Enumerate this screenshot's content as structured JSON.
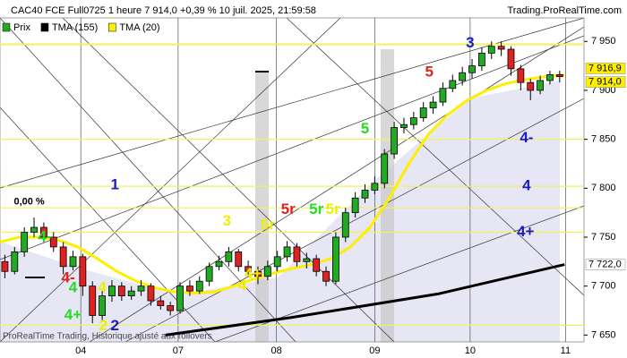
{
  "chart_data": {
    "type": "candlestick",
    "title": "CAC40 FCE Full0725 1 heure 7 914,0 +0,39 % 10 juil. 2025, 21:59:58",
    "source": "Trading.ProRealTime.com",
    "footer": "ProRealTime Trading, Historique ajusté aux rollovers",
    "xlim": [
      0,
      60
    ],
    "xticks": [
      {
        "value": 8.3,
        "label": "04"
      },
      {
        "value": 18.3,
        "label": "07"
      },
      {
        "value": 28.4,
        "label": "08"
      },
      {
        "value": 38.5,
        "label": "09"
      },
      {
        "value": 48.3,
        "label": "10"
      },
      {
        "value": 58.1,
        "label": "11"
      }
    ],
    "ylim": [
      7643,
      7974
    ],
    "yticks": [
      {
        "value": 7650,
        "label": "7 650"
      },
      {
        "value": 7700,
        "label": "7 700"
      },
      {
        "value": 7750,
        "label": "7 750"
      },
      {
        "value": 7800,
        "label": "7 800"
      },
      {
        "value": 7850,
        "label": "7 850"
      },
      {
        "value": 7900,
        "label": "7 900"
      },
      {
        "value": 7950,
        "label": "7 950"
      }
    ],
    "levels": [
      7947,
      7850,
      7802,
      7780,
      7755,
      7660
    ],
    "level_color": "#f2f25a",
    "series": [
      {
        "name": "Prix",
        "type": "candlestick",
        "color": "#22aa22",
        "down_color": "#dd2222",
        "x": [
          0.5,
          1.5,
          2.5,
          3.5,
          4.5,
          5.5,
          6.5,
          7.5,
          8.5,
          9.5,
          10.5,
          11.5,
          12.5,
          13.5,
          14.5,
          15.5,
          16.5,
          17.5,
          18.5,
          19.5,
          20.5,
          21.5,
          22.5,
          23.5,
          24.5,
          25.5,
          26.5,
          27.5,
          28.5,
          29.5,
          30.5,
          31.5,
          32.5,
          33.5,
          34.5,
          35.5,
          36.5,
          37.5,
          38.5,
          39.5,
          40.5,
          41.5,
          42.5,
          43.5,
          44.5,
          45.5,
          46.5,
          47.5,
          48.5,
          49.5,
          50.5,
          51.5,
          52.5,
          53.5,
          54.5,
          55.5,
          56.5,
          57.5
        ],
        "open": [
          7725,
          7715,
          7735,
          7755,
          7760,
          7750,
          7740,
          7720,
          7730,
          7700,
          7670,
          7690,
          7700,
          7690,
          7695,
          7700,
          7685,
          7680,
          7675,
          7700,
          7695,
          7705,
          7720,
          7725,
          7735,
          7720,
          7715,
          7710,
          7720,
          7730,
          7740,
          7725,
          7728,
          7715,
          7705,
          7750,
          7775,
          7790,
          7798,
          7805,
          7835,
          7862,
          7865,
          7872,
          7882,
          7888,
          7902,
          7910,
          7918,
          7925,
          7938,
          7945,
          7942,
          7922,
          7908,
          7900,
          7910,
          7916
        ],
        "high": [
          7732,
          7740,
          7760,
          7770,
          7765,
          7755,
          7745,
          7736,
          7733,
          7705,
          7695,
          7706,
          7704,
          7700,
          7706,
          7703,
          7690,
          7684,
          7704,
          7706,
          7710,
          7724,
          7731,
          7740,
          7738,
          7726,
          7720,
          7726,
          7736,
          7746,
          7744,
          7734,
          7732,
          7720,
          7755,
          7780,
          7796,
          7804,
          7812,
          7840,
          7868,
          7872,
          7878,
          7888,
          7894,
          7908,
          7916,
          7924,
          7932,
          7944,
          7950,
          7950,
          7945,
          7926,
          7912,
          7915,
          7920,
          7920
        ],
        "low": [
          7708,
          7712,
          7730,
          7750,
          7745,
          7735,
          7712,
          7716,
          7690,
          7662,
          7665,
          7684,
          7685,
          7686,
          7690,
          7680,
          7676,
          7670,
          7672,
          7690,
          7692,
          7700,
          7716,
          7720,
          7715,
          7710,
          7702,
          7706,
          7715,
          7725,
          7720,
          7718,
          7710,
          7700,
          7702,
          7745,
          7770,
          7785,
          7794,
          7800,
          7830,
          7856,
          7860,
          7868,
          7876,
          7884,
          7898,
          7905,
          7912,
          7920,
          7932,
          7935,
          7915,
          7900,
          7890,
          7896,
          7906,
          7908
        ],
        "close": [
          7715,
          7735,
          7755,
          7760,
          7750,
          7740,
          7720,
          7730,
          7700,
          7670,
          7690,
          7700,
          7690,
          7695,
          7700,
          7685,
          7680,
          7675,
          7700,
          7695,
          7705,
          7720,
          7725,
          7735,
          7720,
          7715,
          7710,
          7720,
          7730,
          7740,
          7725,
          7728,
          7715,
          7705,
          7750,
          7775,
          7790,
          7798,
          7805,
          7835,
          7862,
          7865,
          7872,
          7882,
          7888,
          7902,
          7910,
          7918,
          7925,
          7938,
          7945,
          7942,
          7922,
          7908,
          7900,
          7910,
          7916,
          7914
        ]
      },
      {
        "name": "TMA (155)",
        "type": "line",
        "color": "#000000",
        "x": [
          17,
          30,
          45,
          58
        ],
        "values": [
          7650,
          7668,
          7692,
          7722
        ]
      },
      {
        "name": "TMA (20)",
        "type": "line",
        "color": "#ffee00",
        "x": [
          0,
          2,
          4,
          6,
          8,
          10,
          12,
          14,
          16,
          18,
          20,
          22,
          24,
          26,
          28,
          30,
          32,
          34,
          36,
          38,
          40,
          42,
          44,
          46,
          48,
          50,
          52,
          54,
          56,
          58
        ],
        "values": [
          7745,
          7750,
          7750,
          7747,
          7740,
          7728,
          7715,
          7705,
          7698,
          7694,
          7693,
          7694,
          7700,
          7707,
          7713,
          7718,
          7722,
          7728,
          7740,
          7760,
          7790,
          7825,
          7855,
          7875,
          7890,
          7900,
          7907,
          7911,
          7914,
          7916
        ]
      }
    ],
    "price_labels": [
      {
        "value": 7916.9,
        "label": "7 916,9",
        "color": "#ffee00"
      },
      {
        "value": 7914.0,
        "label": "7 914,0",
        "color": "#ffee00"
      },
      {
        "value": 7722.0,
        "label": "7 722,0",
        "color": "#ffffff"
      }
    ],
    "annotations": [
      {
        "text": "0,00 %",
        "color": "#000000",
        "x": 3.0,
        "y": 7786
      },
      {
        "text": "1",
        "color": "#1a1acc",
        "x": 11.8,
        "y": 7803
      },
      {
        "text": "2",
        "color": "#1a1acc",
        "x": 11.8,
        "y": 7659
      },
      {
        "text": "2",
        "color": "#eeee00",
        "x": 10.6,
        "y": 7659
      },
      {
        "text": "3",
        "color": "#eeee00",
        "x": 23.3,
        "y": 7766
      },
      {
        "text": "3",
        "color": "#1a1acc",
        "x": 48.3,
        "y": 7948
      },
      {
        "text": "4-",
        "color": "#22dd22",
        "x": 4.6,
        "y": 7750
      },
      {
        "text": "4-",
        "color": "#dd2222",
        "x": 7.0,
        "y": 7708
      },
      {
        "text": "4",
        "color": "#22dd22",
        "x": 7.5,
        "y": 7698
      },
      {
        "text": "4+",
        "color": "#22dd22",
        "x": 7.5,
        "y": 7670
      },
      {
        "text": "4",
        "color": "#eeee00",
        "x": 10.5,
        "y": 7698
      },
      {
        "text": "4",
        "color": "#eeee00",
        "x": 24.9,
        "y": 7700
      },
      {
        "text": "4+",
        "color": "#eeee00",
        "x": 26.0,
        "y": 7712
      },
      {
        "text": "4-",
        "color": "#1a1acc",
        "x": 54.1,
        "y": 7851
      },
      {
        "text": "4",
        "color": "#1a1acc",
        "x": 54.1,
        "y": 7802
      },
      {
        "text": "4+",
        "color": "#1a1acc",
        "x": 54.0,
        "y": 7755
      },
      {
        "text": "5",
        "color": "#dd2222",
        "x": 44.1,
        "y": 7918
      },
      {
        "text": "5",
        "color": "#22dd22",
        "x": 37.5,
        "y": 7860
      },
      {
        "text": "5r",
        "color": "#dd2222",
        "x": 29.6,
        "y": 7778
      },
      {
        "text": "5r",
        "color": "#22dd22",
        "x": 32.5,
        "y": 7778
      },
      {
        "text": "5r",
        "color": "#eeee00",
        "x": 34.2,
        "y": 7778
      },
      {
        "text": "5r",
        "color": "#eeee00",
        "x": 27.5,
        "y": 7762
      }
    ]
  }
}
